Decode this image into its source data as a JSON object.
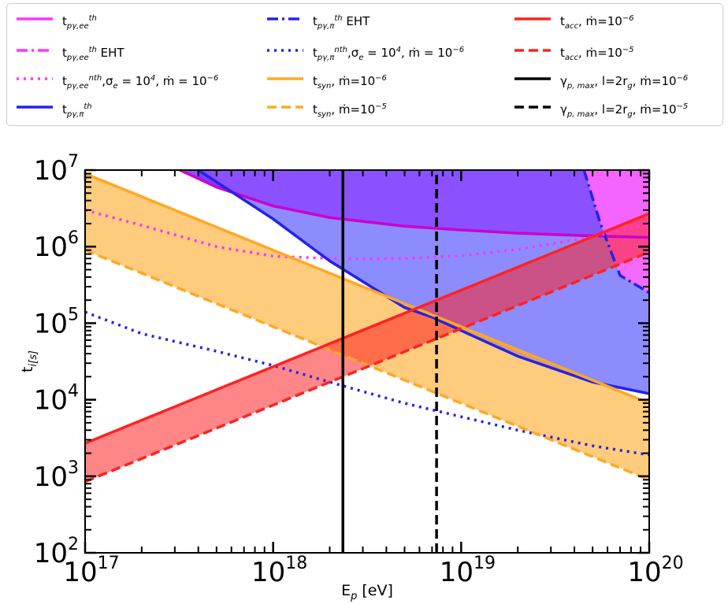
{
  "legend": {
    "items": [
      {
        "label": "t_{pγ,ee}^{th}",
        "color": "#ff33ff",
        "dash": "solid"
      },
      {
        "label": "t_{pγ,ee}^{th} EHT",
        "color": "#ff33ff",
        "dash": "dashdot"
      },
      {
        "label": "t_{pγ,ee}^{nth},σ_e = 10^4, ṁ = 10^{−6}",
        "color": "#ff33ff",
        "dash": "dotted"
      },
      {
        "label": "t_{pγ,π}^{th}",
        "color": "#2222ee",
        "dash": "solid"
      },
      {
        "label": "t_{pγ,π}^{th}  EHT",
        "color": "#2222ee",
        "dash": "dashdot"
      },
      {
        "label": "t_{pγ,π}^{nth},σ_e = 10^4, ṁ = 10^{−6}",
        "color": "#2222ee",
        "dash": "dotted"
      },
      {
        "label": "t_{syn}, ṁ=10^{−6}",
        "color": "#ffa825",
        "dash": "solid"
      },
      {
        "label": "t_{syn}, ṁ=10^{−5}",
        "color": "#ffa825",
        "dash": "dashed"
      },
      {
        "label": "t_{acc}, ṁ=10^{−6}",
        "color": "#ff2222",
        "dash": "solid"
      },
      {
        "label": "t_{acc}, ṁ=10^{−5}",
        "color": "#ff2222",
        "dash": "dashed"
      },
      {
        "label": "γ_{p, max}, l=2r_g, ṁ=10^{−6}",
        "color": "#000000",
        "dash": "solid"
      },
      {
        "label": "γ_{p, max}, l=2r_g, ṁ=10^{−5}",
        "color": "#000000",
        "dash": "dashed"
      }
    ]
  },
  "chart_data": {
    "type": "line",
    "xlabel": "E_p [eV]",
    "ylabel": "t_i[s]",
    "xscale": "log",
    "yscale": "log",
    "xlim": [
      1e+17,
      1e+20
    ],
    "ylim": [
      100,
      10000000.0
    ],
    "x_ticks": [
      {
        "mant": "10",
        "exp": "17",
        "value": 1e+17
      },
      {
        "mant": "10",
        "exp": "18",
        "value": 1e+18
      },
      {
        "mant": "10",
        "exp": "19",
        "value": 1e+19
      },
      {
        "mant": "10",
        "exp": "20",
        "value": 1e+20
      }
    ],
    "y_ticks": [
      {
        "mant": "10",
        "exp": "2",
        "value": 100
      },
      {
        "mant": "10",
        "exp": "3",
        "value": 1000
      },
      {
        "mant": "10",
        "exp": "4",
        "value": 10000
      },
      {
        "mant": "10",
        "exp": "5",
        "value": 100000
      },
      {
        "mant": "10",
        "exp": "6",
        "value": 1000000
      },
      {
        "mant": "10",
        "exp": "7",
        "value": 10000000
      }
    ],
    "legend_position": "top, outside plot",
    "series": [
      {
        "name": "t_{pγ,ee}^{th}",
        "color": "#cc00cc",
        "style": "solid",
        "x": [
          3.2e+17,
          5e+17,
          1e+18,
          2e+18,
          5e+18,
          1e+19,
          2e+19,
          5e+19,
          1e+20
        ],
        "y": [
          10000000.0,
          6000000.0,
          3400000.0,
          2400000.0,
          1850000.0,
          1650000.0,
          1500000.0,
          1380000.0,
          1320000.0
        ]
      },
      {
        "name": "t_{pγ,ee}^{th} EHT",
        "color": "#2222ee",
        "style": "dashdot",
        "x": [
          4.5e+19,
          5.5e+19,
          7e+19,
          1e+20
        ],
        "y": [
          10000000.0,
          2000000.0,
          420000.0,
          250000.0
        ]
      },
      {
        "name": "t_{pγ,ee}^{nth},σ_e = 10^4, ṁ = 10^{−6}",
        "color": "#ff33ff",
        "style": "dotted",
        "x": [
          1e+17,
          2e+17,
          5e+17,
          1e+18,
          2e+18,
          3e+18,
          5e+18,
          1e+19,
          2e+19,
          5e+19,
          1e+20
        ],
        "y": [
          3000000.0,
          1900000.0,
          1000000.0,
          750000.0,
          700000.0,
          690000.0,
          700000.0,
          760000.0,
          920000.0,
          1350000.0,
          2000000.0
        ]
      },
      {
        "name": "t_{pγ,π}^{th}",
        "color": "#2222ee",
        "style": "solid",
        "x": [
          4e+17,
          1e+18,
          2e+18,
          5e+18,
          7e+18,
          1e+19,
          2e+19,
          5e+19,
          1e+20
        ],
        "y": [
          10000000.0,
          2300000.0,
          650000.0,
          160000.0,
          120000.0,
          80000.0,
          37000.0,
          17000.0,
          12000.0
        ]
      },
      {
        "name": "t_{pγ,π}^{nth},σ_e = 10^4, ṁ = 10^{−6}",
        "color": "#2222ee",
        "style": "dotted",
        "x": [
          1e+17,
          2e+17,
          5e+17,
          1e+18,
          2e+18,
          5e+18,
          1e+19,
          2e+19,
          5e+19,
          1e+20
        ],
        "y": [
          140000.0,
          73000.0,
          43000.0,
          28000.0,
          17000.0,
          9000.0,
          6000.0,
          4000.0,
          2500.0,
          1900.0
        ]
      },
      {
        "name": "t_{syn}, ṁ=10^{−6}",
        "color": "#ffa825",
        "style": "solid",
        "x": [
          1e+17,
          1e+20
        ],
        "y": [
          9000000.0,
          9000.0
        ]
      },
      {
        "name": "t_{syn}, ṁ=10^{−5}",
        "color": "#ffa825",
        "style": "dashed",
        "x": [
          1e+17,
          1e+20
        ],
        "y": [
          900000.0,
          900
        ]
      },
      {
        "name": "t_{acc}, ṁ=10^{−6}",
        "color": "#ff2222",
        "style": "solid",
        "x": [
          1e+17,
          1e+20
        ],
        "y": [
          2700.0,
          2700000.0
        ]
      },
      {
        "name": "t_{acc}, ṁ=10^{−5}",
        "color": "#ff2222",
        "style": "dashed",
        "x": [
          1e+17,
          1e+20
        ],
        "y": [
          850,
          850000.0
        ]
      },
      {
        "name": "γ_{p, max}, l=2r_g, ṁ=10^{−6}",
        "color": "#000000",
        "style": "solid",
        "x": [
          2.35e+18,
          2.35e+18
        ],
        "y": [
          100,
          10000000.0
        ]
      },
      {
        "name": "γ_{p, max}, l=2r_g, ṁ=10^{−5}",
        "color": "#000000",
        "style": "dashed",
        "x": [
          7.4e+18,
          7.4e+18
        ],
        "y": [
          100,
          10000000.0
        ]
      }
    ],
    "fills": [
      {
        "between": [
          "t_{pγ,π}^{th}",
          "t_{pγ,ee}^{th}"
        ],
        "color": "#8080ff",
        "opacity": 0.9
      },
      {
        "between": [
          "t_{pγ,ee}^{th}",
          "top"
        ],
        "color": "#7733ff",
        "opacity": 0.85
      },
      {
        "between": [
          "t_{pγ,ee}^{th} EHT",
          "top"
        ],
        "color": "#ff66ff",
        "opacity": 0.9
      },
      {
        "between": [
          "t_{syn}, ṁ=10^{−6}",
          "t_{syn}, ṁ=10^{−5}"
        ],
        "color": "#ffa825",
        "opacity": 0.6
      },
      {
        "between": [
          "t_{acc}, ṁ=10^{−6}",
          "t_{acc}, ṁ=10^{−5}"
        ],
        "color": "#ff2222",
        "opacity": 0.55
      }
    ]
  }
}
